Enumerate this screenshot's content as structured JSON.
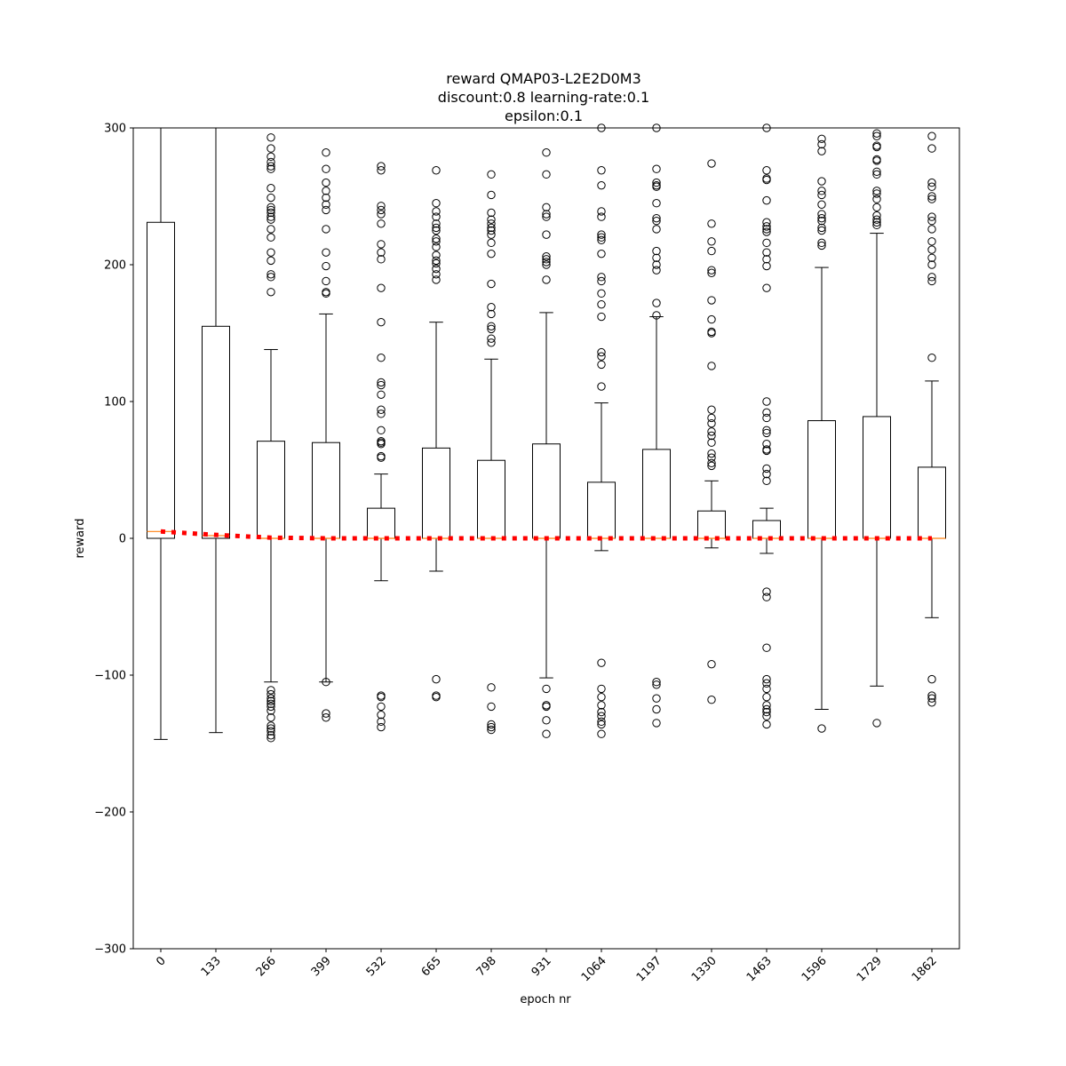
{
  "chart_data": {
    "type": "box",
    "title_lines": [
      "reward QMAP03-L2E2D0M3",
      "discount:0.8 learning-rate:0.1",
      "epsilon:0.1"
    ],
    "xlabel": "epoch nr",
    "ylabel": "reward",
    "ylim": [
      -300,
      300
    ],
    "yticks": [
      -300,
      -200,
      -100,
      0,
      100,
      200,
      300
    ],
    "yticklabels": [
      "−300",
      "−200",
      "−100",
      "0",
      "100",
      "200",
      "300"
    ],
    "categories": [
      "0",
      "133",
      "266",
      "399",
      "532",
      "665",
      "798",
      "931",
      "1064",
      "1197",
      "1330",
      "1463",
      "1596",
      "1729",
      "1862"
    ],
    "colors": {
      "box": "#000000",
      "median": "#ff7f0e",
      "mean_line": "#ff0000"
    },
    "boxes": [
      {
        "q1": 0,
        "median": 5,
        "q3": 231,
        "whisker_low": -147,
        "whisker_high": 300,
        "fliers": []
      },
      {
        "q1": 0,
        "median": 2,
        "q3": 155,
        "whisker_low": -142,
        "whisker_high": 300,
        "fliers": []
      },
      {
        "q1": 0,
        "median": 0,
        "q3": 71,
        "whisker_low": -105,
        "whisker_high": 138,
        "fliers": [
          293,
          285,
          279,
          275,
          272,
          270,
          256,
          249,
          242,
          240,
          238,
          235,
          233,
          226,
          220,
          209,
          203,
          193,
          191,
          180,
          -111,
          -114,
          -117,
          -119,
          -121,
          -123,
          -126,
          -131,
          -137,
          -139,
          -141,
          -144,
          -146
        ]
      },
      {
        "q1": 0,
        "median": 0,
        "q3": 70,
        "whisker_low": -105,
        "whisker_high": 164,
        "fliers": [
          282,
          270,
          260,
          254,
          249,
          244,
          240,
          226,
          209,
          199,
          188,
          180,
          179,
          -105,
          -128,
          -131
        ]
      },
      {
        "q1": 0,
        "median": 0,
        "q3": 22,
        "whisker_low": -31,
        "whisker_high": 47,
        "fliers": [
          272,
          269,
          243,
          240,
          237,
          230,
          215,
          209,
          204,
          183,
          158,
          132,
          114,
          112,
          105,
          94,
          91,
          79,
          71,
          70,
          69,
          60,
          59,
          -115,
          -116,
          -123,
          -129,
          -134,
          -138
        ]
      },
      {
        "q1": 0,
        "median": 0,
        "q3": 66,
        "whisker_low": -24,
        "whisker_high": 158,
        "fliers": [
          269,
          245,
          239,
          235,
          230,
          227,
          225,
          219,
          217,
          213,
          207,
          203,
          201,
          197,
          193,
          189,
          -103,
          -115,
          -116
        ]
      },
      {
        "q1": 0,
        "median": 0,
        "q3": 57,
        "whisker_low": 0,
        "whisker_high": 131,
        "fliers": [
          266,
          251,
          238,
          233,
          230,
          227,
          225,
          222,
          216,
          208,
          186,
          169,
          164,
          155,
          153,
          146,
          143,
          -109,
          -123,
          -136,
          -138,
          -140
        ]
      },
      {
        "q1": 0,
        "median": 0,
        "q3": 69,
        "whisker_low": -102,
        "whisker_high": 165,
        "fliers": [
          282,
          266,
          242,
          237,
          235,
          222,
          206,
          204,
          202,
          200,
          189,
          -110,
          -122,
          -123,
          -133,
          -143
        ]
      },
      {
        "q1": 0,
        "median": 0,
        "q3": 41,
        "whisker_low": -9,
        "whisker_high": 99,
        "fliers": [
          300,
          269,
          258,
          239,
          235,
          222,
          220,
          218,
          208,
          191,
          188,
          179,
          171,
          162,
          136,
          133,
          127,
          111,
          -91,
          -110,
          -116,
          -122,
          -127,
          -130,
          -134,
          -136,
          -143
        ]
      },
      {
        "q1": 0,
        "median": 0,
        "q3": 65,
        "whisker_low": 0,
        "whisker_high": 162,
        "fliers": [
          300,
          270,
          260,
          258,
          257,
          245,
          234,
          232,
          226,
          210,
          205,
          200,
          196,
          172,
          163,
          -105,
          -107,
          -117,
          -125,
          -135
        ]
      },
      {
        "q1": 0,
        "median": 0,
        "q3": 20,
        "whisker_low": -7,
        "whisker_high": 42,
        "fliers": [
          274,
          230,
          217,
          210,
          196,
          194,
          174,
          160,
          151,
          150,
          126,
          94,
          88,
          84,
          78,
          75,
          70,
          62,
          59,
          55,
          53,
          -92,
          -118
        ]
      },
      {
        "q1": 0,
        "median": 0,
        "q3": 13,
        "whisker_low": -11,
        "whisker_high": 22,
        "fliers": [
          300,
          269,
          263,
          262,
          247,
          231,
          228,
          226,
          224,
          216,
          209,
          204,
          199,
          183,
          100,
          92,
          88,
          79,
          77,
          69,
          65,
          64,
          51,
          47,
          42,
          -39,
          -43,
          -80,
          -103,
          -106,
          -110,
          -116,
          -122,
          -125,
          -127,
          -130,
          -136
        ]
      },
      {
        "q1": 0,
        "median": 0,
        "q3": 86,
        "whisker_low": -125,
        "whisker_high": 198,
        "fliers": [
          292,
          288,
          283,
          261,
          254,
          251,
          244,
          237,
          234,
          232,
          227,
          225,
          216,
          214,
          -139
        ]
      },
      {
        "q1": 0,
        "median": 0,
        "q3": 89,
        "whisker_low": -108,
        "whisker_high": 223,
        "fliers": [
          296,
          294,
          287,
          277,
          268,
          266,
          252,
          248,
          242,
          236,
          233,
          231,
          229,
          286,
          276,
          254,
          -135
        ]
      },
      {
        "q1": 0,
        "median": 0,
        "q3": 52,
        "whisker_low": -58,
        "whisker_high": 115,
        "fliers": [
          294,
          285,
          260,
          257,
          250,
          248,
          235,
          232,
          226,
          217,
          211,
          205,
          200,
          191,
          188,
          132,
          -103,
          -115,
          -117,
          -120
        ]
      }
    ],
    "mean_line": {
      "style": "dotted",
      "values": [
        5,
        2.5,
        0.5,
        0,
        0,
        0,
        0,
        0,
        0,
        0,
        0,
        0,
        0,
        0,
        0
      ]
    }
  }
}
